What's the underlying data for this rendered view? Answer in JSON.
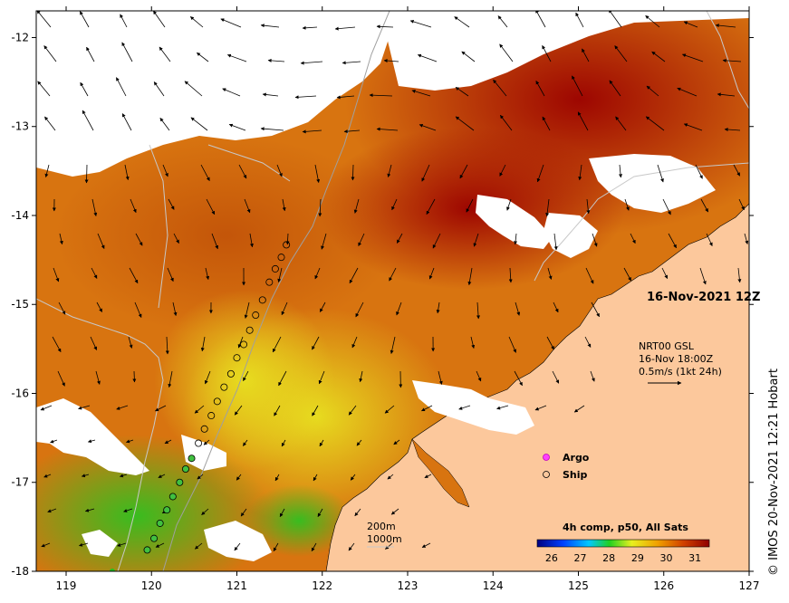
{
  "map": {
    "date_label": "16-Nov-2021 12Z",
    "current_product": {
      "line1": "NRT00 GSL",
      "line2": "16-Nov 18:00Z",
      "line3": "0.5m/s (1kt 24h)"
    },
    "legend": {
      "argo_label": "Argo",
      "ship_label": "Ship"
    },
    "contours": {
      "label1": "200m",
      "label2": "1000m"
    },
    "colorbar": {
      "title": "4h comp, p50, All Sats",
      "ticks": [
        "26",
        "27",
        "28",
        "29",
        "30",
        "31"
      ],
      "range": [
        25.5,
        31.5
      ]
    },
    "credit": "© IMOS 20-Nov-2021 12:21 Hobart",
    "x_axis": {
      "ticks": [
        "119",
        "120",
        "121",
        "122",
        "123",
        "124",
        "125",
        "126",
        "127"
      ],
      "range": [
        118.65,
        127
      ]
    },
    "y_axis": {
      "ticks": [
        "-12",
        "-13",
        "-14",
        "-15",
        "-16",
        "-17",
        "-18"
      ],
      "range": [
        -18,
        -11.7
      ]
    },
    "ship_track": [
      [
        121.58,
        -14.33
      ],
      [
        121.52,
        -14.47
      ],
      [
        121.45,
        -14.6
      ],
      [
        121.38,
        -14.75
      ],
      [
        121.3,
        -14.95
      ],
      [
        121.22,
        -15.12
      ],
      [
        121.15,
        -15.29
      ],
      [
        121.08,
        -15.45
      ],
      [
        121.0,
        -15.6
      ],
      [
        120.93,
        -15.78
      ],
      [
        120.85,
        -15.93
      ],
      [
        120.77,
        -16.09
      ],
      [
        120.7,
        -16.25
      ],
      [
        120.62,
        -16.4
      ],
      [
        120.55,
        -16.56
      ],
      [
        120.47,
        -16.73
      ],
      [
        120.4,
        -16.85
      ],
      [
        120.33,
        -17.0
      ],
      [
        120.25,
        -17.16
      ],
      [
        120.18,
        -17.31
      ],
      [
        120.1,
        -17.46
      ],
      [
        120.03,
        -17.63
      ],
      [
        119.95,
        -17.76
      ]
    ]
  }
}
